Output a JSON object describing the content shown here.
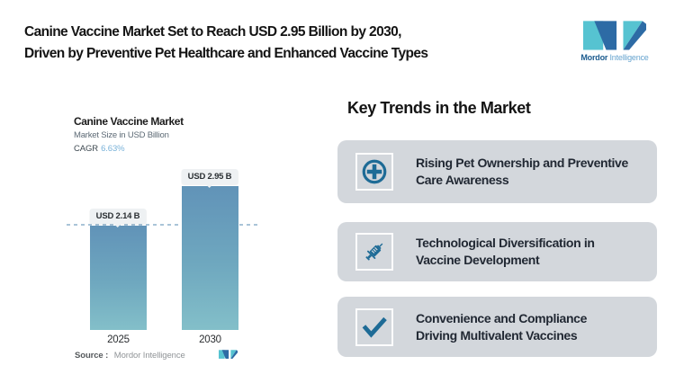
{
  "header": {
    "title_line1": "Canine Vaccine Market Set to Reach USD 2.95 Billion by 2030,",
    "title_line2": "Driven by Preventive Pet Healthcare and Enhanced Vaccine Types"
  },
  "brand": {
    "logo_bold": "Mordor",
    "logo_light": "Intelligence"
  },
  "chart": {
    "title": "Canine Vaccine Market",
    "subtitle": "Market Size in USD Billion",
    "cagr_label": "CAGR",
    "cagr_value": "6.63%",
    "source_label": "Source :",
    "source_value": "Mordor Intelligence"
  },
  "chart_data": {
    "type": "bar",
    "title": "Canine Vaccine Market",
    "ylabel": "Market Size in USD Billion",
    "categories": [
      "2025",
      "2030"
    ],
    "values": [
      2.14,
      2.95
    ],
    "value_labels": [
      "USD 2.14 B",
      "USD 2.95 B"
    ],
    "cagr_percent": 6.63,
    "reference_line_value": 2.14,
    "ylim": [
      0,
      2.95
    ],
    "grid": "off",
    "legend": "none"
  },
  "trends": {
    "heading": "Key Trends in the Market",
    "items": [
      {
        "icon": "medical-cross-icon",
        "line1": "Rising Pet Ownership and Preventive",
        "line2": "Care Awareness"
      },
      {
        "icon": "syringe-icon",
        "line1": "Technological Diversification in",
        "line2": "Vaccine Development"
      },
      {
        "icon": "checkmark-icon",
        "line1": "Convenience and Compliance",
        "line2": "Driving Multivalent Vaccines"
      }
    ]
  },
  "colors": {
    "icon-blue": "#1e6b96",
    "card-bg": "#d3d7dc",
    "bar-top": "#6193b8",
    "bar-bottom": "#83bfc9",
    "dash-line": "#a9c4d8",
    "cagr-accent": "#79b2d9",
    "logo-blue": "#2d6ba5",
    "logo-teal": "#56c3d1",
    "badge-bg": "#eef1f3"
  }
}
